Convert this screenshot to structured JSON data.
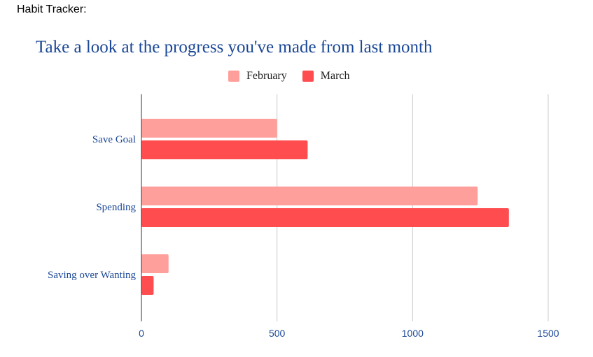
{
  "page_label": "Habit Tracker:",
  "colors": {
    "february": "#ff9f9b",
    "march": "#ff4d4f",
    "title": "#1a4796",
    "category_labels": "#1a4796",
    "tick_labels": "#1a4796",
    "grid": "#cccccc",
    "axis": "#333333"
  },
  "chart_data": {
    "type": "bar",
    "orientation": "horizontal",
    "title": "Take a look at the progress you've made from last month",
    "categories": [
      "Save Goal",
      "Spending",
      "Saving over Wanting"
    ],
    "series": [
      {
        "name": "February",
        "values": [
          500,
          1240,
          100
        ]
      },
      {
        "name": "March",
        "values": [
          613,
          1355,
          45
        ]
      }
    ],
    "xlim": [
      0,
      1500
    ],
    "x_ticks": [
      "0",
      "500",
      "1000",
      "1500"
    ],
    "grid": true,
    "legend_position": "top-center"
  }
}
